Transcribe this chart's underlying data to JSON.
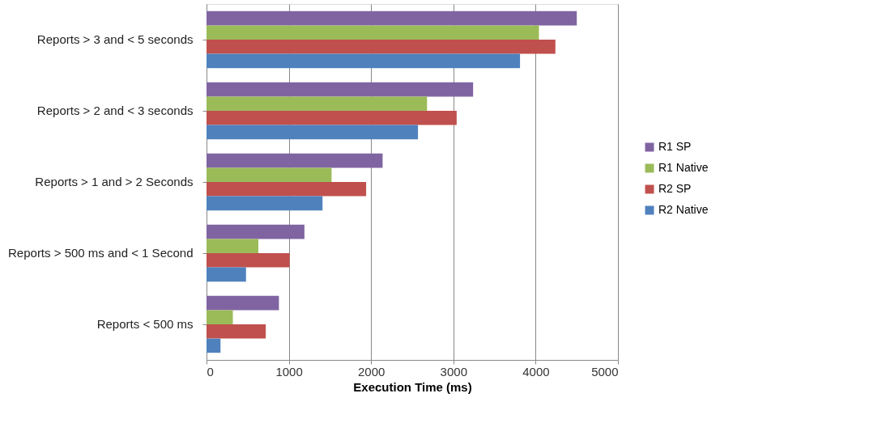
{
  "chart_data": {
    "type": "bar",
    "orientation": "horizontal",
    "xlabel": "Execution Time (ms)",
    "categories": [
      "Reports >  3 and < 5 seconds",
      "Reports >  2 and < 3 seconds",
      "Reports >  1 and > 2 Seconds",
      "Reports >  500 ms and < 1 Second",
      "Reports < 500 ms"
    ],
    "series": [
      {
        "name": "R1 SP",
        "color": "#8064a2",
        "values": [
          4500,
          3240,
          2140,
          1190,
          880
        ]
      },
      {
        "name": "R1 Native",
        "color": "#9bbb59",
        "values": [
          4040,
          2680,
          1520,
          630,
          320
        ]
      },
      {
        "name": "R2 SP",
        "color": "#c0504d",
        "values": [
          4240,
          3040,
          1940,
          1010,
          720
        ]
      },
      {
        "name": "R2 Native",
        "color": "#4f81bd",
        "values": [
          3810,
          2570,
          1410,
          480,
          170
        ]
      }
    ],
    "xlim": [
      0,
      5000
    ],
    "xticks": [
      0,
      1000,
      2000,
      3000,
      4000,
      5000
    ],
    "grid": "x",
    "legend": "right"
  }
}
